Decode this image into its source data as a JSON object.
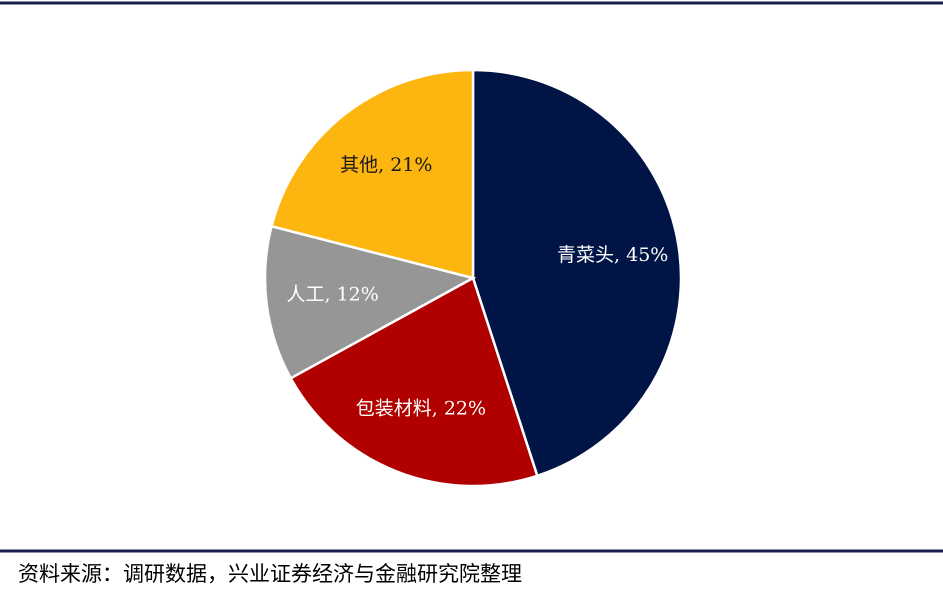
{
  "chart_data": {
    "type": "pie",
    "values": [
      45,
      22,
      12,
      21
    ],
    "value_labels": [
      "青菜头, 45%",
      "包装材料, 22%",
      "人工, 12%",
      "其他, 21%"
    ],
    "colors": [
      "#001446",
      "#b00000",
      "#969696",
      "#fdb50f"
    ],
    "label_colors": [
      "#ffffff",
      "#ffffff",
      "#ffffff",
      "#1a1a1a"
    ],
    "source": "资料来源：调研数据，兴业证券经济与金融研究院整理"
  }
}
